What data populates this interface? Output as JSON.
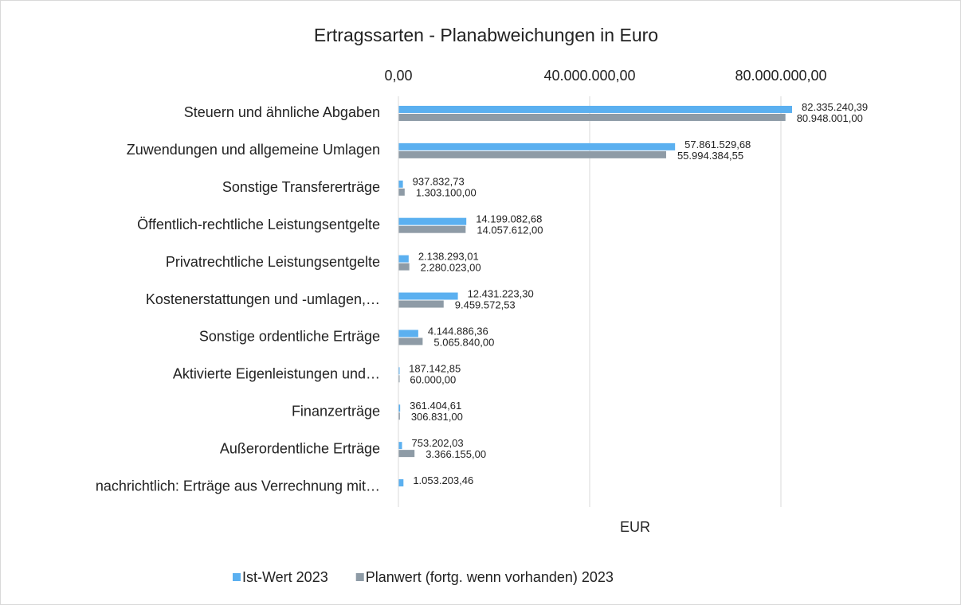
{
  "chart_data": {
    "type": "bar",
    "orientation": "horizontal",
    "title": "Ertragssarten - Planabweichungen in Euro",
    "x_label": "EUR",
    "categories": [
      "Steuern und ähnliche Abgaben",
      "Zuwendungen und allgemeine Umlagen",
      "Sonstige Transfererträge",
      "Öffentlich-rechtliche Leistungsentgelte",
      "Privatrechtliche Leistungsentgelte",
      "Kostenerstattungen und -umlagen,…",
      "Sonstige ordentliche Erträge",
      "Aktivierte Eigenleistungen und…",
      "Finanzerträge",
      "Außerordentliche Erträge",
      "nachrichtlich: Erträge aus Verrechnung mit…"
    ],
    "series": [
      {
        "name": "Ist-Wert 2023",
        "color": "#5bb0f0",
        "values": [
          82335240.39,
          57861529.68,
          937832.73,
          14199082.68,
          2138293.01,
          12431223.3,
          4144886.36,
          187142.85,
          361404.61,
          753202.03,
          1053203.46
        ],
        "value_labels": [
          "82.335.240,39",
          "57.861.529,68",
          "937.832,73",
          "14.199.082,68",
          "2.138.293,01",
          "12.431.223,30",
          "4.144.886,36",
          "187.142,85",
          "361.404,61",
          "753.202,03",
          "1.053.203,46"
        ]
      },
      {
        "name": "Planwert (fortg. wenn vorhanden) 2023",
        "color": "#8e9ba6",
        "values": [
          80948001.0,
          55994384.55,
          1303100.0,
          14057612.0,
          2280023.0,
          9459572.53,
          5065840.0,
          60000.0,
          306831.0,
          3366155.0,
          null
        ],
        "value_labels": [
          "80.948.001,00",
          "55.994.384,55",
          "1.303.100,00",
          "14.057.612,00",
          "2.280.023,00",
          "9.459.572,53",
          "5.065.840,00",
          "60.000,00",
          "306.831,00",
          "3.366.155,00",
          null
        ]
      }
    ],
    "xlim": [
      0,
      100000000
    ],
    "xticks": [
      {
        "value": 0,
        "label": "0,00"
      },
      {
        "value": 40000000,
        "label": "40.000.000,00"
      },
      {
        "value": 80000000,
        "label": "80.000.000,00"
      }
    ],
    "grid": true,
    "legend": "bottom"
  }
}
